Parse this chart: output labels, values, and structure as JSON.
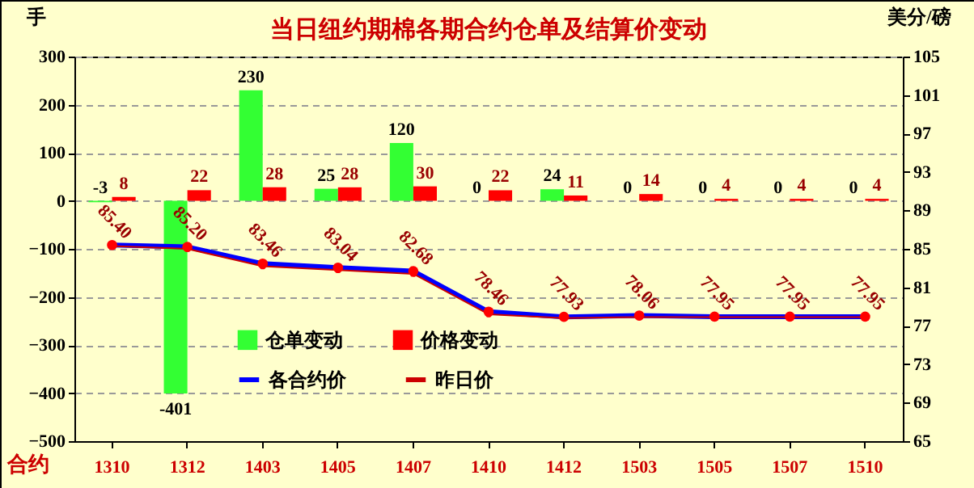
{
  "chart_data": {
    "type": "bar",
    "title": "当日纽约期棉各期合约仓单及结算价变动",
    "xlabel": "合约",
    "ylabel": "手",
    "y2label": "美分/磅",
    "categories": [
      "1310",
      "1312",
      "1403",
      "1405",
      "1407",
      "1410",
      "1412",
      "1503",
      "1505",
      "1507",
      "1510"
    ],
    "series": [
      {
        "name": "仓单变动",
        "color": "#33ff33",
        "values": [
          -3,
          -401,
          230,
          25,
          120,
          0,
          24,
          0,
          0,
          0,
          0
        ],
        "value_labels": [
          "-3",
          "-401",
          "230",
          "25",
          "120",
          "0",
          "24",
          "0",
          "0",
          "0",
          "0"
        ]
      },
      {
        "name": "价格变动",
        "color": "#ff0000",
        "values": [
          8,
          22,
          28,
          28,
          30,
          22,
          11,
          14,
          4,
          4,
          4
        ],
        "value_labels": [
          "8",
          "22",
          "28",
          "28",
          "30",
          "22",
          "11",
          "14",
          "4",
          "4",
          "4"
        ]
      },
      {
        "name": "各合约价",
        "type": "line",
        "axis": "y2",
        "color": "#0000ff",
        "values": [
          85.4,
          85.2,
          83.46,
          83.04,
          82.68,
          78.46,
          77.93,
          78.06,
          77.95,
          77.95,
          77.95
        ],
        "value_labels": [
          "85.40",
          "85.20",
          "83.46",
          "83.04",
          "82.68",
          "78.46",
          "77.93",
          "78.06",
          "77.95",
          "77.95",
          "77.95"
        ]
      },
      {
        "name": "昨日价",
        "type": "line",
        "axis": "y2",
        "color": "#cc0000",
        "values": [
          85.3,
          85.0,
          83.2,
          82.8,
          82.4,
          78.2,
          77.8,
          77.9,
          77.9,
          77.9,
          77.9
        ]
      }
    ],
    "ylim": [
      -500,
      300
    ],
    "yticks": [
      -500,
      -400,
      -300,
      -200,
      -100,
      0,
      100,
      200,
      300
    ],
    "y2lim": [
      65,
      105
    ],
    "y2ticks": [
      65,
      69,
      73,
      77,
      81,
      85,
      89,
      93,
      97,
      101,
      105
    ],
    "grid": "y",
    "legend": "bottom",
    "marker": "circle",
    "line_style": "solid"
  }
}
